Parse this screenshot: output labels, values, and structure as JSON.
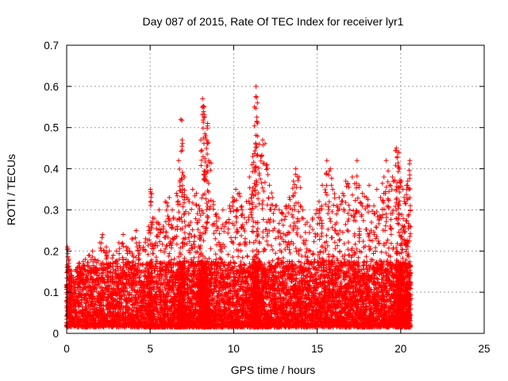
{
  "chart_data": {
    "type": "scatter",
    "title": "Day 087 of 2015, Rate Of TEC Index for receiver lyr1",
    "xlabel": "GPS time / hours",
    "ylabel": "ROTI / TECUs",
    "xlim": [
      0,
      25
    ],
    "ylim": [
      0,
      0.7
    ],
    "xticks": [
      "0",
      "5",
      "10",
      "15",
      "20",
      "25"
    ],
    "yticks": [
      "0",
      "0.1",
      "0.2",
      "0.3",
      "0.4",
      "0.5",
      "0.6",
      "0.7"
    ],
    "grid": true,
    "marker": "plus",
    "color": "#ff0000",
    "series": [
      {
        "x": [
          0.0,
          0.1,
          0.2,
          0.3,
          0.5,
          0.7,
          0.9,
          1.1,
          1.3,
          1.5,
          1.7,
          1.9,
          2.1,
          2.3,
          2.5,
          2.7,
          2.9,
          3.1,
          3.3,
          3.5,
          3.7,
          3.9,
          4.1,
          4.3,
          4.5,
          4.7,
          4.9,
          5.0,
          5.1,
          5.3,
          5.5,
          5.7,
          5.9,
          6.1,
          6.3,
          6.5,
          6.7,
          6.8,
          6.9,
          7.0,
          7.1,
          7.3,
          7.5,
          7.7,
          7.9,
          8.0,
          8.1,
          8.2,
          8.3,
          8.4,
          8.5,
          8.7,
          8.9,
          9.1,
          9.3,
          9.5,
          9.7,
          9.9,
          10.1,
          10.3,
          10.5,
          10.7,
          10.9,
          11.1,
          11.2,
          11.3,
          11.4,
          11.5,
          11.7,
          11.9,
          12.1,
          12.3,
          12.5,
          12.7,
          12.9,
          13.1,
          13.3,
          13.5,
          13.7,
          13.9,
          14.1,
          14.3,
          14.5,
          14.7,
          14.9,
          15.1,
          15.3,
          15.5,
          15.7,
          15.9,
          16.1,
          16.3,
          16.5,
          16.7,
          16.9,
          17.1,
          17.3,
          17.5,
          17.7,
          17.9,
          18.1,
          18.3,
          18.5,
          18.7,
          18.9,
          19.1,
          19.3,
          19.5,
          19.7,
          19.8,
          19.9,
          20.0,
          20.1,
          20.2,
          20.3,
          20.4,
          20.5
        ],
        "y_max": [
          0.21,
          0.18,
          0.14,
          0.13,
          0.15,
          0.17,
          0.16,
          0.18,
          0.19,
          0.2,
          0.18,
          0.22,
          0.24,
          0.21,
          0.2,
          0.19,
          0.2,
          0.22,
          0.24,
          0.21,
          0.2,
          0.23,
          0.25,
          0.22,
          0.21,
          0.23,
          0.26,
          0.35,
          0.28,
          0.27,
          0.3,
          0.26,
          0.32,
          0.33,
          0.3,
          0.34,
          0.42,
          0.52,
          0.47,
          0.38,
          0.33,
          0.32,
          0.35,
          0.34,
          0.31,
          0.47,
          0.57,
          0.55,
          0.48,
          0.51,
          0.42,
          0.32,
          0.29,
          0.28,
          0.3,
          0.27,
          0.31,
          0.33,
          0.35,
          0.34,
          0.3,
          0.32,
          0.38,
          0.43,
          0.55,
          0.6,
          0.56,
          0.46,
          0.47,
          0.41,
          0.36,
          0.33,
          0.31,
          0.3,
          0.29,
          0.31,
          0.33,
          0.37,
          0.4,
          0.38,
          0.3,
          0.27,
          0.26,
          0.28,
          0.3,
          0.32,
          0.36,
          0.42,
          0.4,
          0.35,
          0.31,
          0.33,
          0.34,
          0.37,
          0.3,
          0.38,
          0.42,
          0.36,
          0.34,
          0.33,
          0.36,
          0.31,
          0.35,
          0.33,
          0.38,
          0.42,
          0.36,
          0.38,
          0.45,
          0.44,
          0.4,
          0.37,
          0.35,
          0.33,
          0.36,
          0.37,
          0.42
        ]
      }
    ]
  }
}
